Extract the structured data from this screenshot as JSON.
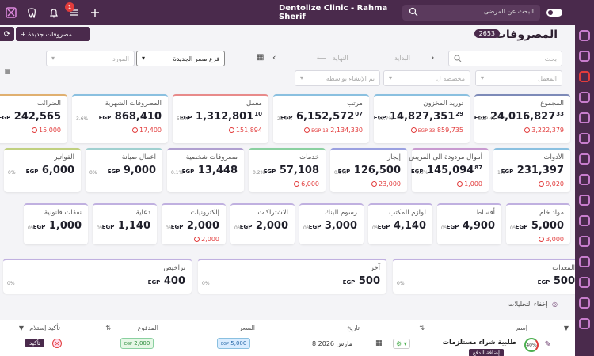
{
  "topbar": {
    "title": "Dentolize Clinic - Rahma Sherif",
    "search_placeholder": "البحث عن المرضى",
    "notif_count": "1"
  },
  "page": {
    "title": "المصروفات",
    "count": "2653",
    "new_button": "+ مصروفات جديدة"
  },
  "filters": {
    "search": "بحث",
    "start": "البداية",
    "end": "النهاية",
    "branch": "فرع مصر الجديدة",
    "supplier": "المورد",
    "lab": "المعمل",
    "assigned": "مخصصة ل",
    "created_by": "تم الإنشاء بواسطة"
  },
  "cards_row1": [
    {
      "label": "المجموع",
      "whole": "24,016,827",
      "dec": "33",
      "cur": "EGP",
      "pct": "EGP 46",
      "due": "3,222,379",
      "color": "#7d8ab8"
    },
    {
      "label": "توريد المخزون",
      "whole": "14,827,351",
      "dec": "29",
      "cur": "EGP",
      "pct": "61.7%",
      "due_cur": "EGP 33",
      "due": "859,735",
      "color": "#8ac0e0"
    },
    {
      "label": "مرتب",
      "whole": "6,152,572",
      "dec": "07",
      "cur": "EGP",
      "pct": "25.6%",
      "due_cur": "EGP 13",
      "due": "2,134,330",
      "color": "#8ac0e0"
    },
    {
      "label": "معمل",
      "whole": "1,312,801",
      "dec": "10",
      "cur": "EGP",
      "pct": "5.5%",
      "due": "151,894",
      "color": "#e88a8a"
    },
    {
      "label": "المصروفات الشهرية",
      "whole": "868,410",
      "dec": "",
      "cur": "EGP",
      "pct": "3.6%",
      "due": "17,400",
      "color": "#8ac0e0"
    },
    {
      "label": "الضرائب",
      "whole": "242,565",
      "dec": "",
      "cur": "EGP",
      "pct": "1%",
      "due": "15,000",
      "color": "#e0b070"
    }
  ],
  "cards_row2": [
    {
      "label": "الأدوات",
      "whole": "231,397",
      "cur": "EGP",
      "pct": "1%",
      "due": "9,020",
      "color": "#8ac0e0"
    },
    {
      "label": "أموال مردودة الى المريض",
      "whole": "145,094",
      "dec": "87",
      "cur": "EGP",
      "pct": "0.6%",
      "due": "1,000",
      "color": "#c89ad0"
    },
    {
      "label": "إيجار",
      "whole": "126,500",
      "cur": "EGP",
      "pct": "0.5%",
      "due": "23,000",
      "color": "#9aa0e0"
    },
    {
      "label": "خدمات",
      "whole": "57,108",
      "cur": "EGP",
      "pct": "0.2%",
      "due": "6,000",
      "color": "#8ad0a0"
    },
    {
      "label": "مصروفات شخصية",
      "whole": "13,448",
      "cur": "EGP",
      "pct": "0.1%",
      "due": "",
      "color": "#b0a0d0"
    },
    {
      "label": "اعمال صيانة",
      "whole": "9,000",
      "cur": "EGP",
      "pct": "0%",
      "due": "",
      "color": "#a0d0d0"
    },
    {
      "label": "الفواتير",
      "whole": "6,000",
      "cur": "EGP",
      "pct": "0%",
      "due": "",
      "color": "#c0d080"
    }
  ],
  "cards_row3": [
    {
      "label": "مواد خام",
      "whole": "5,000",
      "cur": "EGP",
      "pct": "0%",
      "due": "3,000",
      "color": "#c0b0e0"
    },
    {
      "label": "أقساط",
      "whole": "4,900",
      "cur": "EGP",
      "pct": "0%",
      "due": "",
      "color": "#c0b0e0"
    },
    {
      "label": "لوازم المكتب",
      "whole": "4,140",
      "cur": "EGP",
      "pct": "0%",
      "due": "",
      "color": "#c0b0e0"
    },
    {
      "label": "رسوم البنك",
      "whole": "3,000",
      "cur": "EGP",
      "pct": "0%",
      "due": "",
      "color": "#c0b0e0"
    },
    {
      "label": "الاشتراكات",
      "whole": "2,000",
      "cur": "EGP",
      "pct": "0%",
      "due": "",
      "color": "#c0b0e0"
    },
    {
      "label": "إلكترونيات",
      "whole": "2,000",
      "cur": "EGP",
      "pct": "0%",
      "due": "2,000",
      "color": "#c0b0e0"
    },
    {
      "label": "دعاية",
      "whole": "1,140",
      "cur": "EGP",
      "pct": "0%",
      "due": "",
      "color": "#c0b0e0"
    },
    {
      "label": "نفقات قانونية",
      "whole": "1,000",
      "cur": "EGP",
      "pct": "0%",
      "due": "",
      "color": "#c0b0e0"
    }
  ],
  "cards_row4": [
    {
      "label": "المعدات",
      "whole": "500",
      "cur": "EGP",
      "pct": "0%",
      "color": "#c0b0e0"
    },
    {
      "label": "آخر",
      "whole": "500",
      "cur": "EGP",
      "pct": "0%",
      "color": "#c0b0e0"
    },
    {
      "label": "تراخيص",
      "whole": "400",
      "cur": "EGP",
      "pct": "0%",
      "color": "#c0b0e0"
    }
  ],
  "analytics": {
    "hide": "إخفاء التحليلات"
  },
  "table": {
    "headers": {
      "name": "إسم",
      "date": "تاريخ",
      "price": "السعر",
      "paid": "المدفوع",
      "confirm": "تأكيد إستلام"
    },
    "row": {
      "pct": "40%",
      "name": "طلبية شراء مستلزمات",
      "tag": "إضافة الدفع",
      "date": "8 مارس 2026",
      "price": "5,000",
      "price_cur": "EGP",
      "paid": "2,000",
      "paid_cur": "EGP",
      "confirm": "تأكيد"
    }
  }
}
